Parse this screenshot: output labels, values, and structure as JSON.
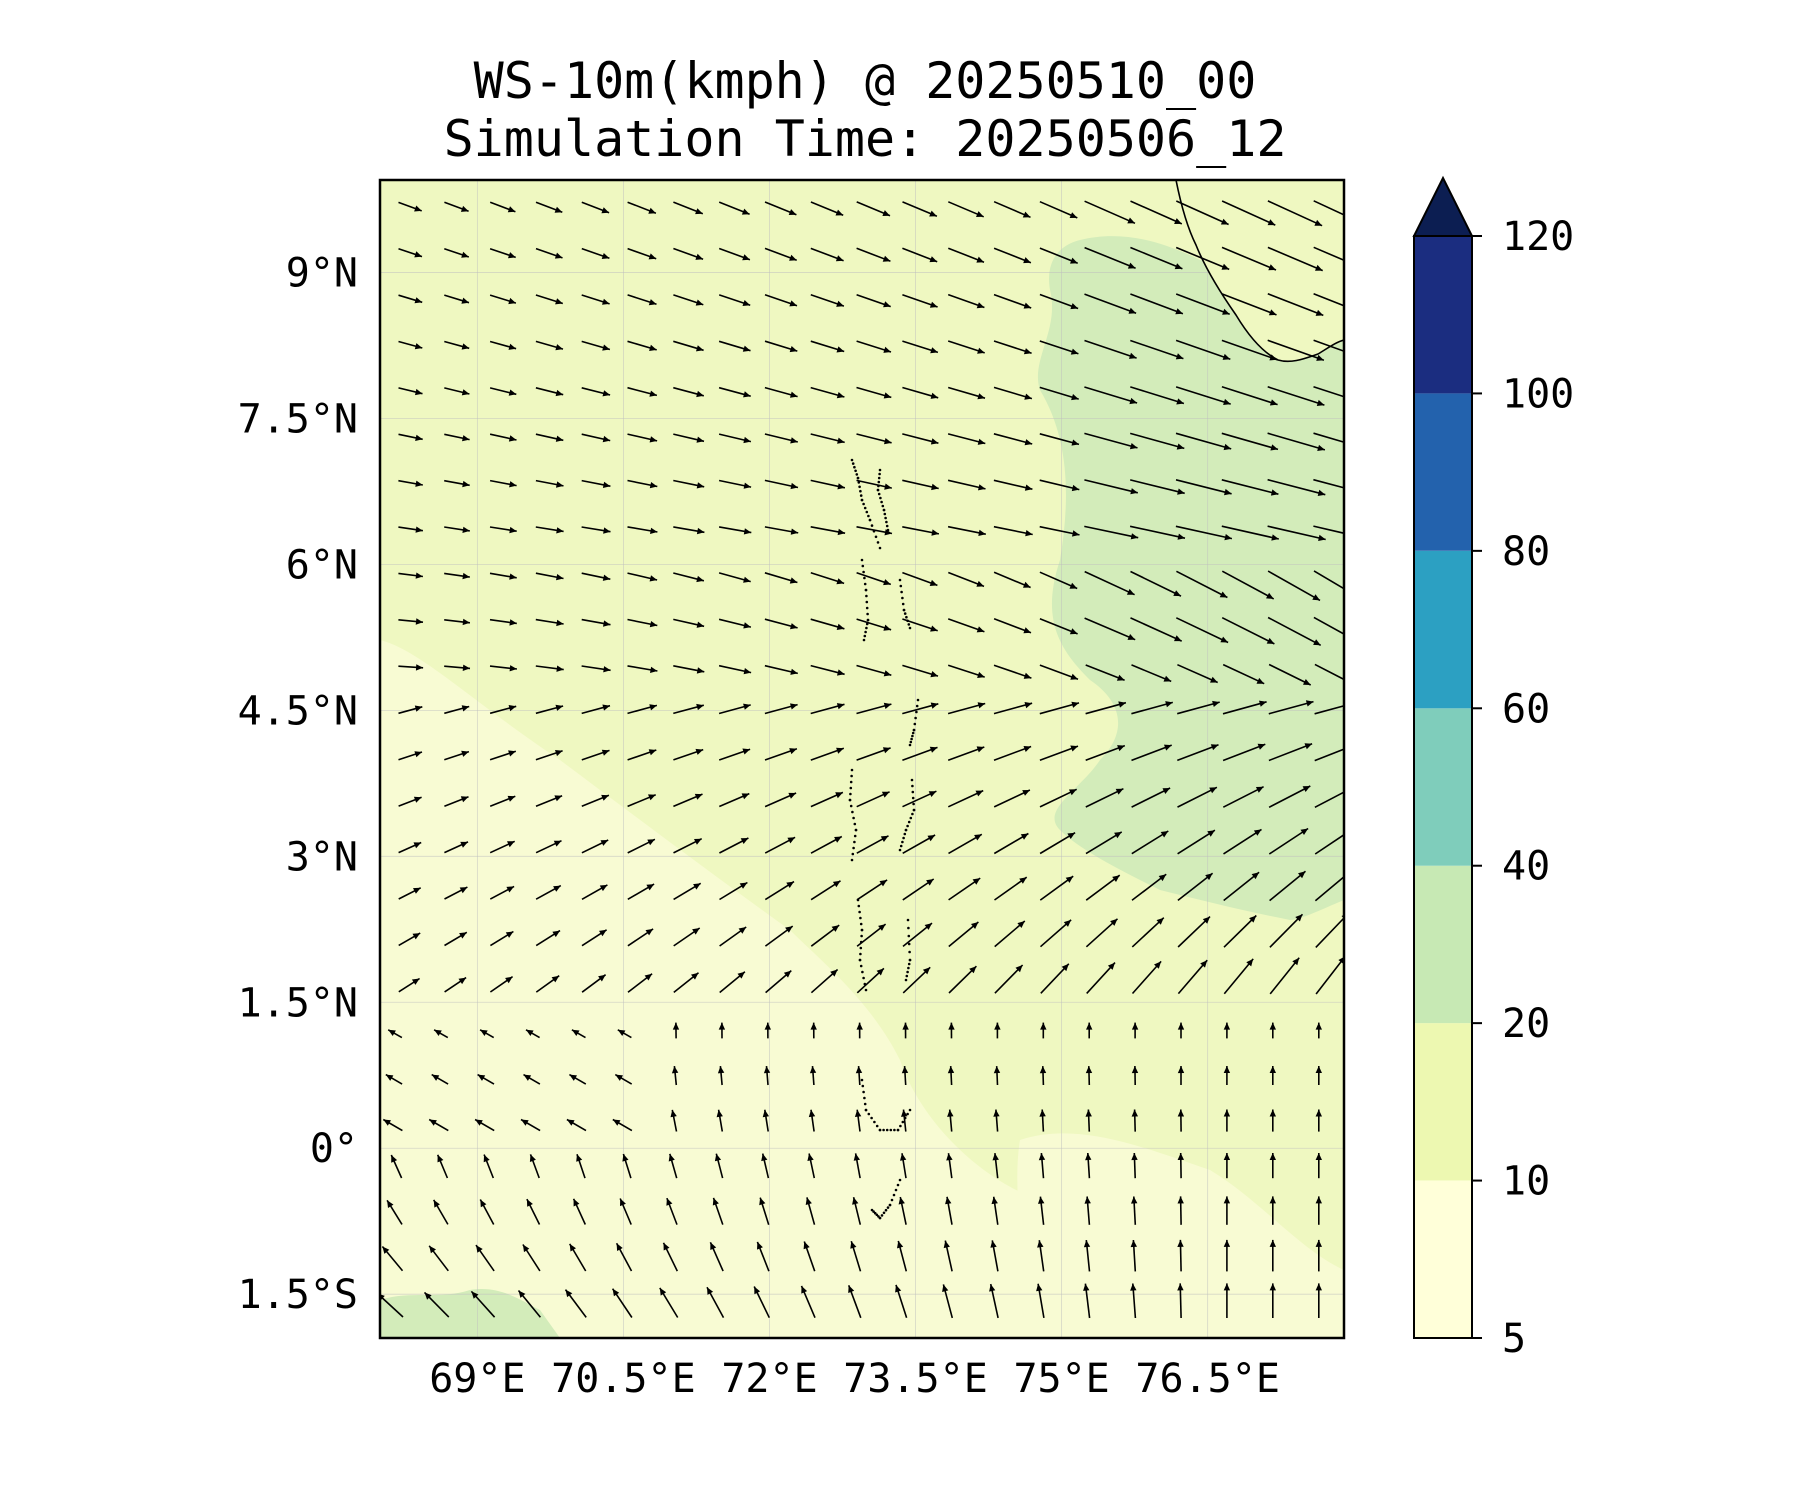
{
  "title": {
    "line1": "WS-10m(kmph) @ 20250510_00",
    "line2": "Simulation Time: 20250506_12"
  },
  "map": {
    "lat_labels": [
      {
        "value": 9,
        "label": "9°N"
      },
      {
        "value": 7.5,
        "label": "7.5°N"
      },
      {
        "value": 6,
        "label": "6°N"
      },
      {
        "value": 4.5,
        "label": "4.5°N"
      },
      {
        "value": 3,
        "label": "3°N"
      },
      {
        "value": 1.5,
        "label": "1.5°N"
      },
      {
        "value": 0,
        "label": "0°"
      },
      {
        "value": -1.5,
        "label": "1.5°S"
      }
    ],
    "lon_labels": [
      {
        "value": 69,
        "label": "69°E"
      },
      {
        "value": 70.5,
        "label": "70.5°E"
      },
      {
        "value": 72,
        "label": "72°E"
      },
      {
        "value": 73.5,
        "label": "73.5°E"
      },
      {
        "value": 75,
        "label": "75°E"
      },
      {
        "value": 76.5,
        "label": "76.5°E"
      }
    ],
    "lon_range": [
      68.0,
      77.9
    ],
    "lat_range": [
      -1.95,
      9.95
    ],
    "coastline": "India southern tip (top-right corner)",
    "islands": "Maldives atolls (dotted outlines)"
  },
  "colorbar": {
    "ticks": [
      "5",
      "10",
      "20",
      "40",
      "60",
      "80",
      "100",
      "120"
    ],
    "levels": [
      5,
      10,
      20,
      40,
      60,
      80,
      100,
      120
    ],
    "colors": [
      "#ffffd9",
      "#edf8b1",
      "#c7e9b4",
      "#7fcdbb",
      "#2ca0c2",
      "#2362ad",
      "#1b2d80"
    ],
    "extend_color": "#0c1e52",
    "extend": "max"
  },
  "colors": {
    "band_lt10": "#f8fbd3",
    "band_10_20": "#eff8c1",
    "band_20_40": "#d3ecba",
    "arrow": "#000000"
  }
}
